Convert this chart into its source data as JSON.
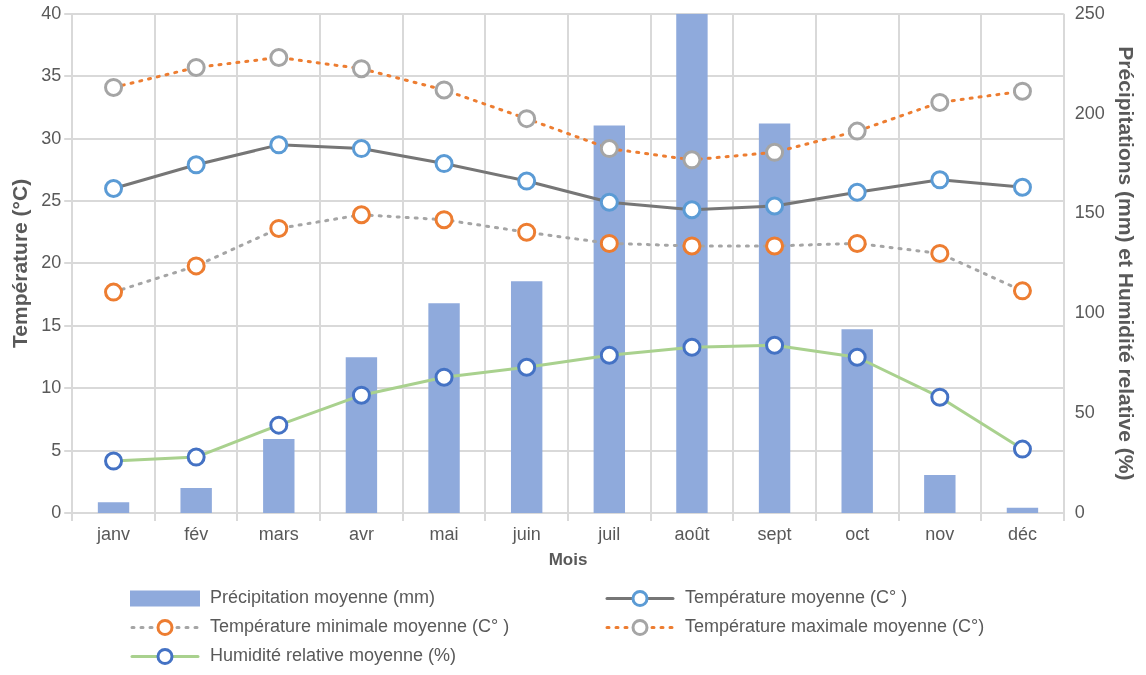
{
  "chart_data": {
    "type": "bar",
    "categories": [
      "janv",
      "fév",
      "mars",
      "avr",
      "mai",
      "juin",
      "juil",
      "août",
      "sept",
      "oct",
      "nov",
      "déc"
    ],
    "xlabel": "Mois",
    "ylabel": "Température (°C)",
    "y2label": "Précipitations (mm) et Humidité relative (%)",
    "ylim": [
      0,
      40
    ],
    "yticks": [
      0,
      5,
      10,
      15,
      20,
      25,
      30,
      35,
      40
    ],
    "y2lim": [
      0,
      250
    ],
    "y2ticks": [
      0,
      50,
      100,
      150,
      200,
      250
    ],
    "grid": true,
    "legend": "bottom",
    "marker": "circle",
    "series": [
      {
        "name": "Précipitation moyenne (mm)",
        "axis": "y2",
        "color": "#8faadc",
        "values": [
          5.4,
          12.5,
          37,
          78,
          105,
          116,
          194,
          250,
          195,
          92,
          19,
          2.6
        ]
      },
      {
        "name": "Température moyenne (C° )",
        "type": "line",
        "line_style": "solid",
        "color": "#767676",
        "colors": [
          "#5b9bd5",
          "#5b9bd5",
          "#5b9bd5",
          "#5b9bd5",
          "#5b9bd5",
          "#5b9bd5",
          "#5b9bd5",
          "#5b9bd5",
          "#5b9bd5",
          "#5b9bd5",
          "#5b9bd5",
          "#5b9bd5"
        ],
        "values": [
          26.0,
          27.9,
          29.5,
          29.2,
          28.0,
          26.6,
          24.9,
          24.3,
          24.6,
          25.7,
          26.7,
          26.1
        ]
      },
      {
        "name": "Température minimale moyenne (C° )",
        "type": "line",
        "line_style": "dotted",
        "color": "#a5a5a5",
        "colors": [
          "#ed7d31",
          "#ed7d31",
          "#ed7d31",
          "#ed7d31",
          "#ed7d31",
          "#ed7d31",
          "#ed7d31",
          "#ed7d31",
          "#ed7d31",
          "#ed7d31",
          "#ed7d31",
          "#ed7d31"
        ],
        "values": [
          17.7,
          19.8,
          22.8,
          23.9,
          23.5,
          22.5,
          21.6,
          21.4,
          21.4,
          21.6,
          20.8,
          17.8
        ]
      },
      {
        "name": "Température maximale moyenne (C°)",
        "type": "line",
        "line_style": "dotted",
        "color": "#ed7d31",
        "colors": [
          "#a5a5a5",
          "#a5a5a5",
          "#a5a5a5",
          "#a5a5a5",
          "#a5a5a5",
          "#a5a5a5",
          "#a5a5a5",
          "#a5a5a5",
          "#a5a5a5",
          "#a5a5a5",
          "#a5a5a5",
          "#a5a5a5"
        ],
        "values": [
          34.1,
          35.7,
          36.5,
          35.6,
          33.9,
          31.6,
          29.2,
          28.3,
          28.9,
          30.6,
          32.9,
          33.8
        ]
      },
      {
        "name": "Humidité relative moyenne (%)",
        "type": "line",
        "axis": "y2",
        "line_style": "solid",
        "color": "#a9d18e",
        "colors": [
          "#4472c4",
          "#4472c4",
          "#4472c4",
          "#4472c4",
          "#4472c4",
          "#4472c4",
          "#4472c4",
          "#4472c4",
          "#4472c4",
          "#4472c4",
          "#4472c4",
          "#4472c4"
        ],
        "values": [
          26,
          28,
          44,
          59,
          68,
          73,
          79,
          83,
          84,
          78,
          58,
          32
        ]
      }
    ]
  }
}
